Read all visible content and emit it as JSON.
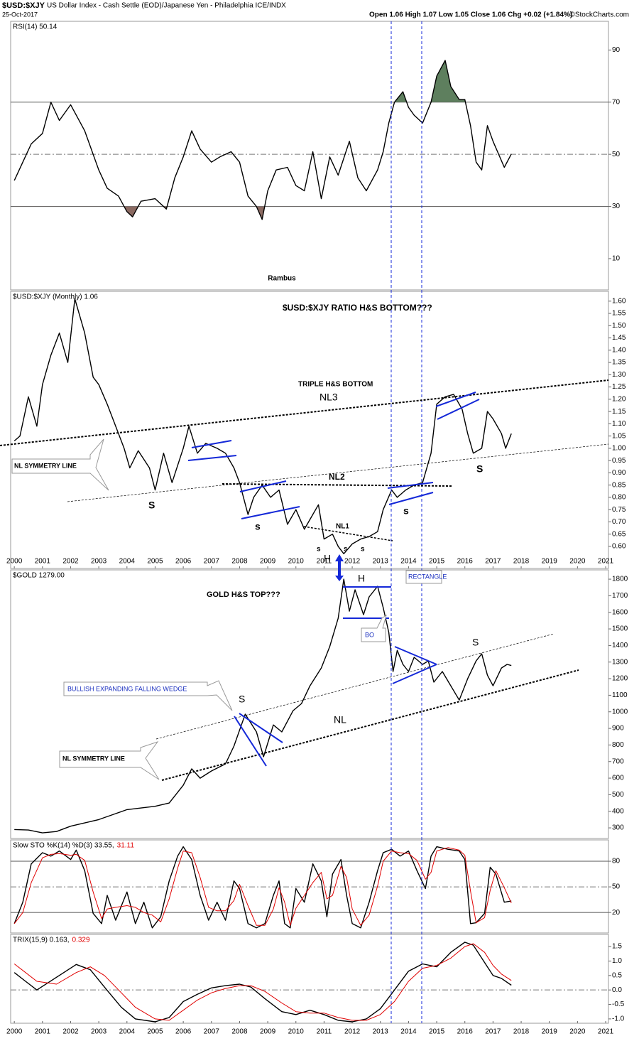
{
  "header": {
    "symbol": "$USD:$XJY",
    "title": "US Dollar Index - Cash Settle (EOD)/Japanese Yen - Philadelphia ICE/INDX",
    "date": "25-Oct-2017",
    "quote": "Open 1.06  High 1.07  Low 1.05  Close 1.06  Chg +0.02 (+1.84%)",
    "copyright": "©StockCharts.com"
  },
  "chart_data": [
    {
      "type": "line",
      "xlim": [
        1999.87,
        2021.1
      ],
      "ylim": [
        -2,
        101
      ],
      "yticks": [
        90,
        70,
        50,
        30,
        10
      ],
      "solid_lines": [
        70,
        30
      ],
      "dashed_lines": [
        50
      ],
      "overbought": 70,
      "oversold": 30,
      "overbought_color": "#5e7f5e",
      "oversold_color": "#8b6a62",
      "annotations": [
        "Rambus"
      ],
      "x": [
        2000.0,
        2000.3,
        2000.6,
        2001.0,
        2001.3,
        2001.6,
        2002.0,
        2002.5,
        2003.0,
        2003.3,
        2003.7,
        2004.0,
        2004.2,
        2004.5,
        2005.0,
        2005.4,
        2005.7,
        2006.0,
        2006.3,
        2006.6,
        2007.0,
        2007.3,
        2007.7,
        2008.0,
        2008.3,
        2008.6,
        2008.8,
        2009.0,
        2009.3,
        2009.7,
        2010.0,
        2010.3,
        2010.6,
        2010.9,
        2011.2,
        2011.5,
        2011.9,
        2012.2,
        2012.5,
        2012.9,
        2013.1,
        2013.3,
        2013.5,
        2013.8,
        2014.0,
        2014.2,
        2014.5,
        2014.8,
        2015.0,
        2015.3,
        2015.5,
        2015.8,
        2016.0,
        2016.2,
        2016.4,
        2016.6,
        2016.8,
        2017.0,
        2017.4,
        2017.65
      ],
      "series": [
        {
          "name": "RSI(14) 50.14",
          "color": "#000000",
          "values": [
            40,
            47,
            54,
            58,
            70,
            63,
            69,
            59,
            44,
            37,
            34,
            28,
            26,
            32,
            33,
            29,
            41,
            49,
            59,
            52,
            47,
            49,
            51,
            47,
            34,
            30,
            25,
            36,
            44,
            45,
            38,
            36,
            51,
            33,
            49,
            42,
            55,
            41,
            36,
            44,
            51,
            62,
            70,
            74,
            68,
            65,
            62,
            70,
            80,
            86,
            76,
            71,
            71,
            61,
            47,
            44,
            61,
            55,
            45,
            50.14
          ]
        }
      ]
    },
    {
      "type": "line",
      "xlim": [
        1999.87,
        2021.1
      ],
      "ylim": [
        0.51,
        1.64
      ],
      "yticks": [
        {
          "value": 1.6,
          "label": "1.60"
        },
        1.55,
        {
          "value": 1.5,
          "label": "1.50"
        },
        1.45,
        {
          "value": 1.4,
          "label": "1.40"
        },
        1.35,
        {
          "value": 1.3,
          "label": "1.30"
        },
        1.25,
        {
          "value": 1.2,
          "label": "1.20"
        },
        1.15,
        {
          "value": 1.1,
          "label": "1.10"
        },
        1.05,
        {
          "value": 1.0,
          "label": "1.00"
        },
        0.95,
        {
          "value": 0.9,
          "label": "0.90"
        },
        0.85,
        {
          "value": 0.8,
          "label": "0.80"
        },
        0.75,
        {
          "value": 0.7,
          "label": "0.70"
        },
        0.65,
        {
          "value": 0.6,
          "label": "0.60"
        }
      ],
      "xticks": [
        2000,
        2001,
        2002,
        2003,
        2004,
        2005,
        2006,
        2007,
        2008,
        2009,
        2010,
        2011,
        2012,
        2013,
        2014,
        2015,
        2016,
        2017,
        2018,
        2019,
        2020,
        2021
      ],
      "annotations": [
        "$USD:$XJY RATIO H&S BOTTOM???",
        "TRIPLE H&S BOTTOM",
        "NL3",
        "NL SYMMETRY LINE",
        "NL2",
        "S",
        "s",
        "NL1",
        "s",
        "s",
        "s",
        "H",
        "s",
        "S"
      ],
      "x": [
        2000.0,
        2000.2,
        2000.5,
        2000.8,
        2001.0,
        2001.3,
        2001.6,
        2001.9,
        2002.15,
        2002.5,
        2002.8,
        2003.0,
        2003.3,
        2003.6,
        2003.9,
        2004.1,
        2004.4,
        2004.8,
        2005.0,
        2005.3,
        2005.6,
        2006.0,
        2006.2,
        2006.5,
        2006.8,
        2007.2,
        2007.5,
        2007.8,
        2008.0,
        2008.3,
        2008.5,
        2008.8,
        2009.1,
        2009.4,
        2009.7,
        2010.0,
        2010.3,
        2010.5,
        2010.8,
        2011.0,
        2011.3,
        2011.5,
        2011.7,
        2012.0,
        2012.3,
        2012.6,
        2012.9,
        2013.1,
        2013.4,
        2013.6,
        2013.9,
        2014.2,
        2014.5,
        2014.8,
        2015.0,
        2015.3,
        2015.6,
        2015.9,
        2016.1,
        2016.3,
        2016.6,
        2016.8,
        2017.0,
        2017.3,
        2017.45,
        2017.65
      ],
      "series": [
        {
          "name": "$USD:$XJY (Monthly) 1.06",
          "color": "#000000",
          "values": [
            1.03,
            1.05,
            1.21,
            1.09,
            1.26,
            1.38,
            1.47,
            1.35,
            1.61,
            1.47,
            1.29,
            1.26,
            1.18,
            1.09,
            1.0,
            0.92,
            0.99,
            0.92,
            0.83,
            0.98,
            0.86,
            1.0,
            1.09,
            0.98,
            1.02,
            1.0,
            0.98,
            0.92,
            0.86,
            0.73,
            0.8,
            0.85,
            0.8,
            0.83,
            0.69,
            0.75,
            0.67,
            0.71,
            0.77,
            0.63,
            0.65,
            0.6,
            0.57,
            0.61,
            0.63,
            0.64,
            0.66,
            0.75,
            0.83,
            0.8,
            0.83,
            0.85,
            0.86,
            0.98,
            1.18,
            1.21,
            1.22,
            1.16,
            1.06,
            0.98,
            1.0,
            1.15,
            1.12,
            1.06,
            1.0,
            1.06
          ]
        }
      ]
    },
    {
      "type": "line",
      "xlim": [
        1999.87,
        2021.1
      ],
      "ylim": [
        236,
        1856
      ],
      "yticks": [
        1800,
        1700,
        1600,
        1500,
        1400,
        1300,
        1200,
        1100,
        1000,
        900,
        800,
        700,
        600,
        500,
        400,
        300
      ],
      "annotations": [
        "H",
        "RECTANGLE",
        "GOLD H&S TOP???",
        "BO",
        "S",
        "BULLISH EXPANDING FALLING WEDGE",
        "S",
        "NL",
        "NL SYMMETRY LINE"
      ],
      "x": [
        2000.0,
        2000.5,
        2001.0,
        2001.5,
        2002.0,
        2002.5,
        2003.0,
        2003.5,
        2004.0,
        2004.5,
        2005.0,
        2005.5,
        2006.0,
        2006.3,
        2006.6,
        2007.0,
        2007.5,
        2007.8,
        2008.2,
        2008.6,
        2008.85,
        2009.2,
        2009.5,
        2009.9,
        2010.2,
        2010.5,
        2010.9,
        2011.2,
        2011.5,
        2011.7,
        2011.9,
        2012.1,
        2012.4,
        2012.6,
        2012.9,
        2013.1,
        2013.3,
        2013.45,
        2013.6,
        2013.8,
        2014.0,
        2014.2,
        2014.5,
        2014.7,
        2014.9,
        2015.2,
        2015.5,
        2015.8,
        2016.1,
        2016.4,
        2016.6,
        2016.8,
        2017.0,
        2017.3,
        2017.5,
        2017.65
      ],
      "series": [
        {
          "name": "$GOLD 1279.00",
          "color": "#000000",
          "values": [
            290,
            287,
            270,
            278,
            310,
            330,
            350,
            380,
            410,
            420,
            430,
            450,
            557,
            656,
            600,
            643,
            686,
            793,
            986,
            879,
            729,
            921,
            879,
            1007,
            1050,
            1157,
            1264,
            1393,
            1564,
            1800,
            1607,
            1736,
            1586,
            1693,
            1757,
            1629,
            1479,
            1243,
            1371,
            1286,
            1243,
            1329,
            1286,
            1307,
            1179,
            1243,
            1157,
            1071,
            1200,
            1307,
            1350,
            1221,
            1157,
            1264,
            1286,
            1279
          ]
        }
      ]
    },
    {
      "type": "line",
      "xlim": [
        1999.87,
        2021.1
      ],
      "ylim": [
        -4,
        105
      ],
      "yticks": [
        80,
        50,
        20
      ],
      "solid_lines": [
        80,
        20
      ],
      "dashed_lines": [
        50
      ],
      "x": [
        2000.0,
        2000.3,
        2000.6,
        2001.0,
        2001.3,
        2001.6,
        2002.0,
        2002.2,
        2002.5,
        2002.8,
        2003.1,
        2003.3,
        2003.6,
        2004.0,
        2004.3,
        2004.6,
        2004.9,
        2005.2,
        2005.5,
        2005.8,
        2006.0,
        2006.3,
        2006.6,
        2006.9,
        2007.2,
        2007.5,
        2007.8,
        2008.0,
        2008.3,
        2008.6,
        2008.9,
        2009.2,
        2009.4,
        2009.6,
        2009.8,
        2010.0,
        2010.3,
        2010.6,
        2010.9,
        2011.1,
        2011.3,
        2011.6,
        2011.8,
        2012.0,
        2012.3,
        2012.6,
        2012.9,
        2013.1,
        2013.4,
        2013.7,
        2014.0,
        2014.3,
        2014.6,
        2014.8,
        2015.0,
        2015.4,
        2015.8,
        2016.0,
        2016.2,
        2016.4,
        2016.7,
        2016.9,
        2017.1,
        2017.4,
        2017.65
      ],
      "series": [
        {
          "name": "Slow STO %K(14) %D(3) 33.55,",
          "color": "#000000",
          "values": [
            7,
            32,
            77,
            90,
            86,
            92,
            82,
            93,
            69,
            19,
            7,
            40,
            11,
            44,
            7,
            32,
            2,
            15,
            57,
            86,
            97,
            82,
            40,
            11,
            32,
            11,
            57,
            48,
            7,
            2,
            7,
            40,
            57,
            7,
            2,
            48,
            32,
            77,
            57,
            15,
            65,
            82,
            40,
            7,
            2,
            32,
            69,
            90,
            94,
            86,
            92,
            69,
            48,
            86,
            97,
            94,
            92,
            82,
            7,
            8,
            19,
            73,
            65,
            32,
            33.55
          ]
        },
        {
          "name": "31.11",
          "color": "#e00000",
          "values": [
            7,
            20,
            55,
            84,
            88,
            89,
            87,
            88,
            81,
            44,
            13,
            24,
            26,
            28,
            26,
            20,
            17,
            9,
            36,
            72,
            92,
            90,
            61,
            26,
            22,
            22,
            34,
            53,
            28,
            5,
            5,
            24,
            49,
            32,
            5,
            25,
            40,
            55,
            67,
            36,
            40,
            74,
            61,
            24,
            5,
            17,
            51,
            80,
            92,
            90,
            89,
            81,
            59,
            67,
            92,
            96,
            93,
            87,
            45,
            8,
            14,
            46,
            69,
            49,
            31.11
          ]
        }
      ]
    },
    {
      "type": "line",
      "xlim": [
        1999.87,
        2021.1
      ],
      "ylim": [
        -1.15,
        1.92
      ],
      "yticks": [
        1.5,
        {
          "value": 1.0,
          "label": "1.0"
        },
        0.5,
        {
          "value": 0.0,
          "label": "0.0"
        },
        -0.5,
        {
          "value": -1.0,
          "label": "-1.0"
        }
      ],
      "dashed_lines": [
        0
      ],
      "xticks": [
        2000,
        2001,
        2002,
        2003,
        2004,
        2005,
        2006,
        2007,
        2008,
        2009,
        2010,
        2011,
        2012,
        2013,
        2014,
        2015,
        2016,
        2017,
        2018,
        2019,
        2020,
        2021
      ],
      "x": [
        2000.0,
        2000.4,
        2000.8,
        2001.5,
        2002.2,
        2002.7,
        2003.2,
        2003.8,
        2004.3,
        2005.0,
        2005.5,
        2006.0,
        2006.5,
        2007.0,
        2007.5,
        2008.0,
        2008.4,
        2008.9,
        2009.5,
        2010.0,
        2010.5,
        2011.0,
        2011.5,
        2012.0,
        2012.5,
        2013.0,
        2013.5,
        2014.0,
        2014.5,
        2015.0,
        2015.5,
        2016.0,
        2016.3,
        2016.7,
        2017.0,
        2017.3,
        2017.65
      ],
      "series": [
        {
          "name": "TRIX(15,9) 0.163,",
          "color": "#000000",
          "values": [
            0.6,
            0.3,
            0.0,
            0.44,
            0.88,
            0.7,
            0.1,
            -0.6,
            -1.0,
            -1.1,
            -0.95,
            -0.4,
            -0.15,
            0.07,
            0.15,
            0.2,
            0.1,
            -0.3,
            -0.75,
            -0.85,
            -0.7,
            -0.85,
            -1.05,
            -1.1,
            -1.0,
            -0.65,
            0.0,
            0.65,
            0.9,
            0.8,
            1.3,
            1.65,
            1.55,
            0.95,
            0.5,
            0.4,
            0.163
          ]
        },
        {
          "name": "0.329",
          "color": "#e00000",
          "values": [
            0.9,
            0.6,
            0.3,
            0.2,
            0.6,
            0.8,
            0.5,
            -0.1,
            -0.6,
            -1.0,
            -1.05,
            -0.7,
            -0.35,
            -0.1,
            0.05,
            0.15,
            0.15,
            -0.05,
            -0.45,
            -0.75,
            -0.8,
            -0.8,
            -0.95,
            -1.05,
            -1.05,
            -0.85,
            -0.4,
            0.3,
            0.75,
            0.85,
            1.1,
            1.5,
            1.6,
            1.3,
            0.85,
            0.55,
            0.329
          ]
        }
      ]
    }
  ]
}
